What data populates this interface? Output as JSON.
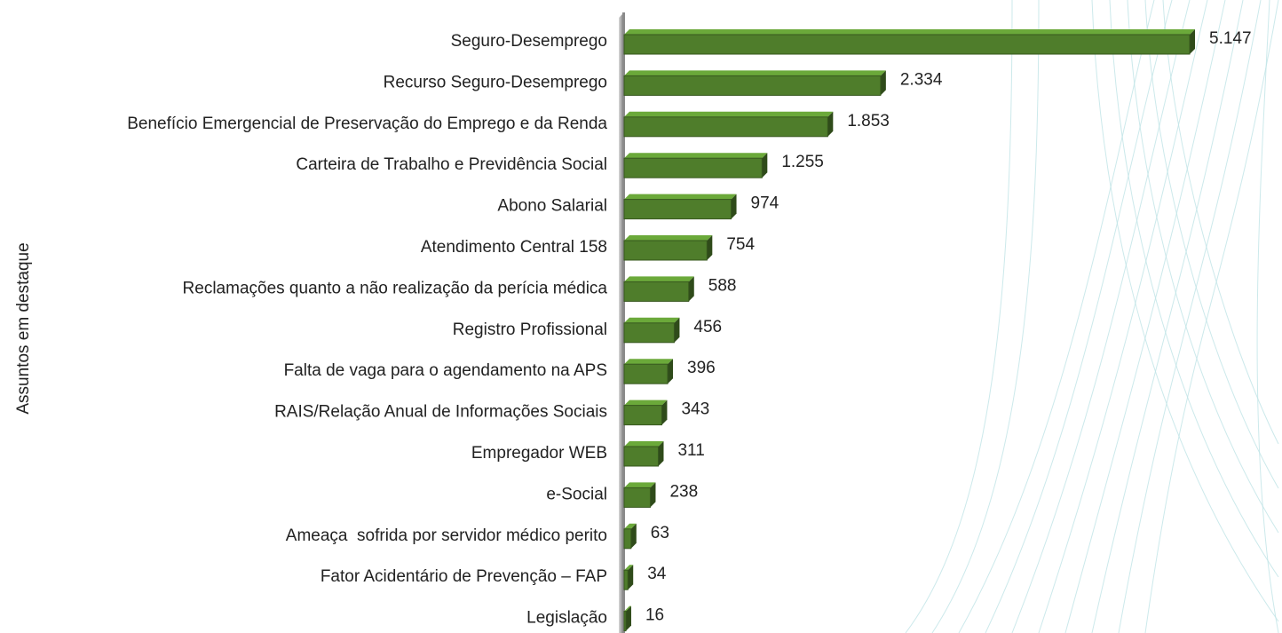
{
  "chart_data": {
    "type": "bar",
    "orientation": "horizontal",
    "y_label": "Assuntos em destaque",
    "categories": [
      "Seguro-Desemprego",
      "Recurso Seguro-Desemprego",
      "Benefício Emergencial de Preservação do Emprego e da Renda",
      "Carteira de Trabalho e Previdência Social",
      "Abono Salarial",
      "Atendimento Central 158",
      "Reclamações quanto a não realização da perícia médica",
      "Registro Profissional",
      "Falta de vaga para o agendamento na APS",
      "RAIS/Relação Anual de Informações Sociais",
      "Empregador WEB",
      "e-Social",
      "Ameaça  sofrida por servidor médico perito",
      "Fator Acidentário de Prevenção – FAP",
      "Legislação"
    ],
    "values": [
      5147,
      2334,
      1853,
      1255,
      974,
      754,
      588,
      456,
      396,
      343,
      311,
      238,
      63,
      34,
      16
    ],
    "value_labels": [
      "5.147",
      "2.334",
      "1.853",
      "1.255",
      "974",
      "754",
      "588",
      "456",
      "396",
      "343",
      "311",
      "238",
      "63",
      "34",
      "16"
    ],
    "color": "#4f7d2b"
  }
}
